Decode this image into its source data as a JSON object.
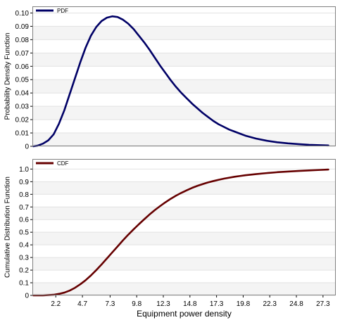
{
  "chart_data": [
    {
      "type": "line",
      "ylabel": "Probability Density Function",
      "ylim": [
        0,
        0.105
      ],
      "yticks": [
        "0",
        "0.01",
        "0.02",
        "0.03",
        "0.04",
        "0.05",
        "0.06",
        "0.07",
        "0.08",
        "0.09",
        "0.10"
      ],
      "xlim": [
        0,
        28.5
      ],
      "grid": "horizontal",
      "legend_position": "top-left",
      "series": [
        {
          "name": "PDF",
          "color": "#000066",
          "x": [
            0.1,
            0.5,
            1.0,
            1.5,
            2.0,
            2.5,
            3.0,
            3.5,
            4.0,
            4.5,
            5.0,
            5.5,
            6.0,
            6.5,
            7.0,
            7.5,
            8.0,
            8.5,
            9.0,
            9.5,
            10.0,
            10.5,
            11.0,
            11.5,
            12.0,
            12.5,
            13.0,
            13.5,
            14.0,
            14.5,
            15.0,
            15.5,
            16.0,
            16.5,
            17.0,
            17.5,
            18.0,
            18.5,
            19.0,
            19.5,
            20.0,
            21.0,
            22.0,
            23.0,
            24.0,
            25.0,
            26.0,
            27.0,
            27.8
          ],
          "y": [
            0.0,
            0.0005,
            0.002,
            0.0045,
            0.009,
            0.017,
            0.027,
            0.039,
            0.051,
            0.063,
            0.074,
            0.083,
            0.0895,
            0.094,
            0.0965,
            0.0975,
            0.097,
            0.095,
            0.092,
            0.088,
            0.083,
            0.078,
            0.0725,
            0.0665,
            0.0605,
            0.055,
            0.0495,
            0.0445,
            0.04,
            0.036,
            0.032,
            0.0285,
            0.025,
            0.022,
            0.019,
            0.0165,
            0.0145,
            0.0125,
            0.011,
            0.0095,
            0.008,
            0.0058,
            0.0042,
            0.003,
            0.0022,
            0.0016,
            0.0011,
            0.0008,
            0.0006
          ]
        }
      ]
    },
    {
      "type": "line",
      "ylabel": "Cumulative Distribution Function",
      "xlabel": "Equipment power density",
      "ylim": [
        0,
        1.08
      ],
      "yticks": [
        "0",
        "0.1",
        "0.2",
        "0.3",
        "0.4",
        "0.5",
        "0.6",
        "0.7",
        "0.8",
        "0.9",
        "1.0"
      ],
      "xlim": [
        0,
        28.5
      ],
      "xticks": [
        "2.2",
        "4.7",
        "7.3",
        "9.8",
        "12.3",
        "14.8",
        "17.3",
        "19.8",
        "22.3",
        "24.8",
        "27.3"
      ],
      "grid": "horizontal",
      "legend_position": "top-left",
      "series": [
        {
          "name": "CDF",
          "color": "#660000",
          "x": [
            0.1,
            1.0,
            2.0,
            2.5,
            3.0,
            3.5,
            4.0,
            4.5,
            5.0,
            5.5,
            6.0,
            6.5,
            7.0,
            7.5,
            8.0,
            8.5,
            9.0,
            9.5,
            10.0,
            10.5,
            11.0,
            11.5,
            12.0,
            12.5,
            13.0,
            13.5,
            14.0,
            14.5,
            15.0,
            15.5,
            16.0,
            16.5,
            17.0,
            17.5,
            18.0,
            18.5,
            19.0,
            19.5,
            20.0,
            21.0,
            22.0,
            23.0,
            24.0,
            25.0,
            26.0,
            27.0,
            27.8
          ],
          "y": [
            0.0,
            0.0,
            0.005,
            0.012,
            0.022,
            0.038,
            0.06,
            0.088,
            0.12,
            0.158,
            0.2,
            0.245,
            0.292,
            0.34,
            0.387,
            0.435,
            0.48,
            0.522,
            0.563,
            0.602,
            0.64,
            0.675,
            0.707,
            0.737,
            0.765,
            0.79,
            0.812,
            0.832,
            0.851,
            0.867,
            0.881,
            0.894,
            0.905,
            0.915,
            0.924,
            0.932,
            0.939,
            0.945,
            0.951,
            0.96,
            0.968,
            0.975,
            0.98,
            0.985,
            0.989,
            0.993,
            0.996
          ]
        }
      ]
    }
  ]
}
